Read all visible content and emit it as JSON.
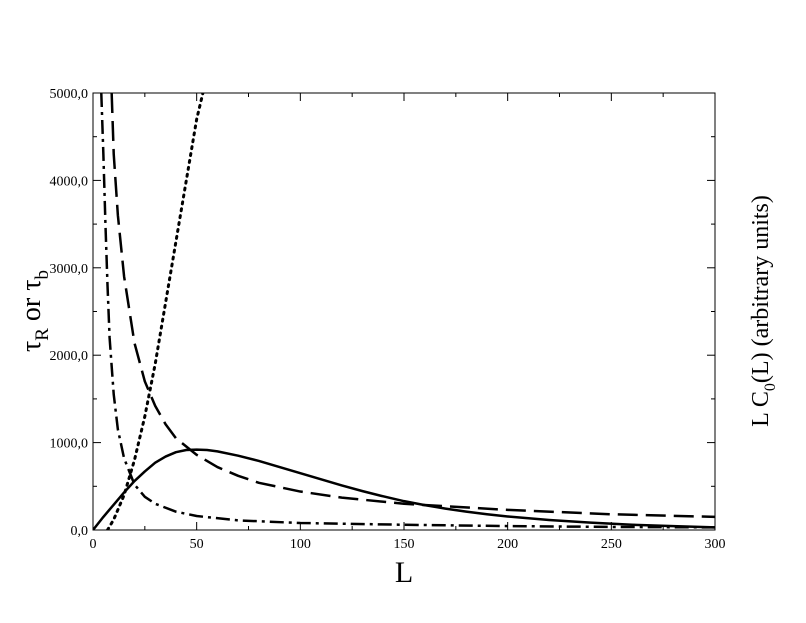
{
  "chart_data": {
    "type": "line",
    "title": "",
    "xlabel": "L",
    "ylabel": {
      "symbol": "τ",
      "sub1": "R",
      "mid": " or ",
      "sub2": "b"
    },
    "y2label": {
      "prefix": "L C",
      "sub": "0",
      "suffix": "(L) (arbitrary units)"
    },
    "xlim": [
      0,
      300
    ],
    "ylim": [
      0,
      5000
    ],
    "x_ticks": [
      0,
      50,
      100,
      150,
      200,
      250,
      300
    ],
    "x_tick_labels": [
      "0",
      "50",
      "100",
      "150",
      "200",
      "250",
      "300"
    ],
    "y_ticks": [
      0,
      1000,
      2000,
      3000,
      4000,
      5000
    ],
    "y_tick_labels": [
      "0,0",
      "1000,0",
      "2000,0",
      "3000,0",
      "4000,0",
      "5000,0"
    ],
    "grid": false,
    "series": [
      {
        "style": "solid",
        "x": [
          0,
          2,
          5,
          10,
          15,
          20,
          25,
          30,
          35,
          40,
          45,
          50,
          55,
          60,
          70,
          80,
          90,
          100,
          110,
          120,
          130,
          140,
          150,
          160,
          170,
          180,
          190,
          200,
          220,
          240,
          260,
          280,
          300
        ],
        "y": [
          0,
          60,
          150,
          290,
          430,
          560,
          670,
          770,
          840,
          890,
          915,
          920,
          915,
          900,
          850,
          790,
          720,
          650,
          580,
          510,
          445,
          385,
          330,
          285,
          245,
          210,
          180,
          155,
          115,
          85,
          60,
          45,
          30
        ]
      },
      {
        "style": "dashed",
        "x": [
          9,
          10,
          12,
          15,
          20,
          25,
          30,
          35,
          40,
          50,
          60,
          70,
          80,
          100,
          120,
          150,
          200,
          250,
          300
        ],
        "y": [
          5000,
          4300,
          3600,
          2900,
          2140,
          1700,
          1420,
          1210,
          1050,
          860,
          720,
          620,
          540,
          440,
          370,
          300,
          230,
          180,
          150
        ]
      },
      {
        "style": "dotted",
        "x": [
          7,
          10,
          15,
          20,
          25,
          30,
          35,
          40,
          45,
          50,
          53
        ],
        "y": [
          0,
          120,
          400,
          800,
          1300,
          1900,
          2600,
          3300,
          4000,
          4700,
          5000
        ]
      },
      {
        "style": "dashdot",
        "x": [
          4,
          5,
          6,
          7,
          8,
          10,
          12,
          15,
          20,
          25,
          30,
          40,
          50,
          70,
          100,
          150,
          200,
          250,
          300
        ],
        "y": [
          5000,
          4300,
          3500,
          2800,
          2200,
          1550,
          1150,
          820,
          520,
          380,
          300,
          210,
          160,
          110,
          80,
          60,
          45,
          35,
          30
        ]
      }
    ]
  }
}
